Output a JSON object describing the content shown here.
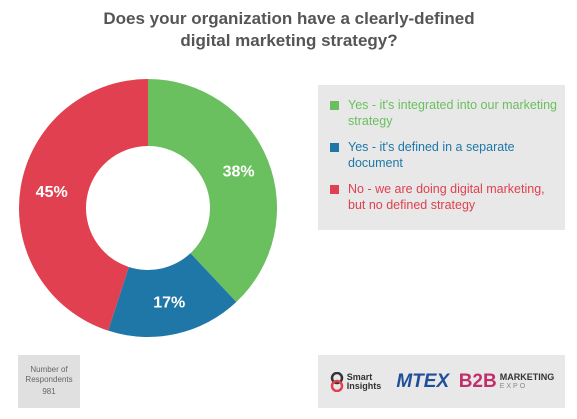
{
  "chart_data": {
    "type": "donut",
    "title": "Does your organization have a clearly-defined digital marketing strategy?",
    "categories": [
      "Yes - it's integrated into our marketing strategy",
      "Yes - it's defined in a separate document",
      "No - we are doing digital marketing, but no defined strategy"
    ],
    "values": [
      38,
      17,
      45
    ],
    "value_labels": [
      "38%",
      "17%",
      "45%"
    ],
    "colors": [
      "#6abf5e",
      "#1f77a8",
      "#e0404f"
    ]
  },
  "footer": {
    "respondents_label": "Number of Respondents",
    "respondents": "981",
    "logos": [
      "Smart Insights",
      "MTEX",
      "B2B",
      "MARKETING",
      "EXPO"
    ]
  }
}
